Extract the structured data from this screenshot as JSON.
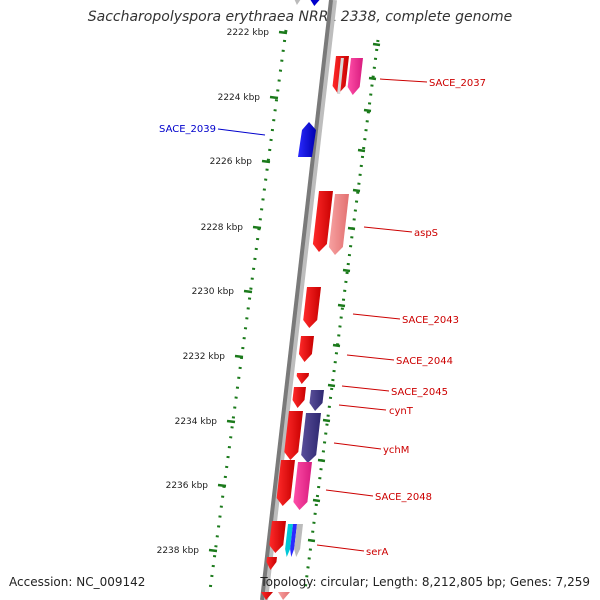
{
  "title": "Saccharopolyspora erythraea NRRL 2338, complete genome",
  "footer": {
    "accession": "Accession: NC_009142",
    "summary": "Topology: circular; Length: 8,212,805 bp; Genes: 7,259"
  },
  "colors": {
    "backbone": "#808080",
    "ticks": "#1b7a1b",
    "forward_label": "#cc0000",
    "reverse_label": "#0000cc"
  },
  "kbp_ticks": [
    "2222 kbp",
    "2224 kbp",
    "2226 kbp",
    "2228 kbp",
    "2230 kbp",
    "2232 kbp",
    "2234 kbp",
    "2236 kbp",
    "2238 kbp"
  ],
  "gene_labels": [
    {
      "name": "SACE_2037",
      "strand": "forward"
    },
    {
      "name": "SACE_2039",
      "strand": "reverse"
    },
    {
      "name": "aspS",
      "strand": "forward"
    },
    {
      "name": "SACE_2043",
      "strand": "forward"
    },
    {
      "name": "SACE_2044",
      "strand": "forward"
    },
    {
      "name": "SACE_2045",
      "strand": "forward"
    },
    {
      "name": "cynT",
      "strand": "forward"
    },
    {
      "name": "ychM",
      "strand": "forward"
    },
    {
      "name": "SACE_2048",
      "strand": "forward"
    },
    {
      "name": "serA",
      "strand": "forward"
    }
  ]
}
